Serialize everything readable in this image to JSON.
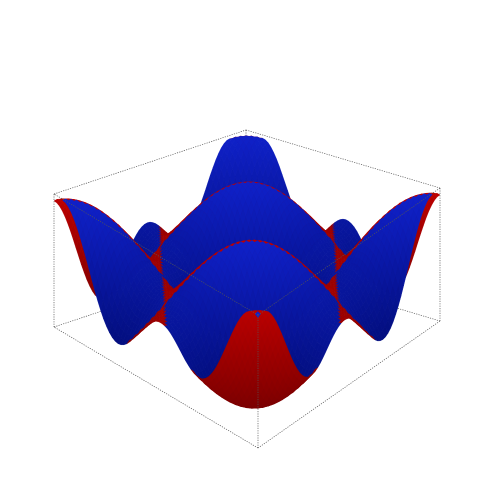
{
  "figure": {
    "kind": "3d-surface-plot",
    "colors": {
      "red": "#d40000",
      "red_dark": "#7a0000",
      "blue": "#1428e6",
      "blue_dark": "#000a70",
      "box": "#555555",
      "background": "#ffffff"
    }
  }
}
